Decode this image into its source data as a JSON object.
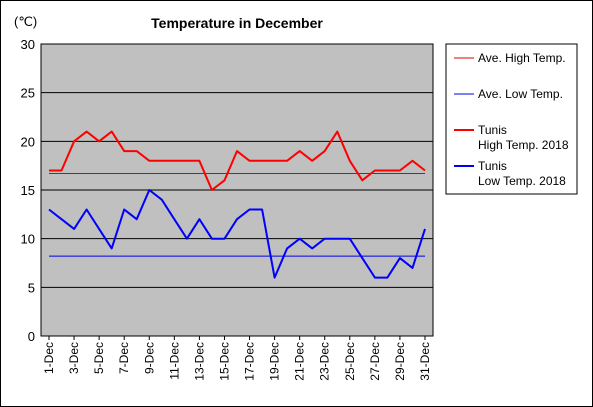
{
  "chart_data": {
    "type": "line",
    "title": "Temperature in December",
    "unit_label": "(℃)",
    "ylim": [
      0,
      30
    ],
    "yticks": [
      0,
      5,
      10,
      15,
      20,
      25,
      30
    ],
    "grid": true,
    "legend_position": "right",
    "categories": [
      "1-Dec",
      "2-Dec",
      "3-Dec",
      "4-Dec",
      "5-Dec",
      "6-Dec",
      "7-Dec",
      "8-Dec",
      "9-Dec",
      "10-Dec",
      "11-Dec",
      "12-Dec",
      "13-Dec",
      "14-Dec",
      "15-Dec",
      "16-Dec",
      "17-Dec",
      "18-Dec",
      "19-Dec",
      "20-Dec",
      "21-Dec",
      "22-Dec",
      "23-Dec",
      "24-Dec",
      "25-Dec",
      "26-Dec",
      "27-Dec",
      "28-Dec",
      "29-Dec",
      "30-Dec",
      "31-Dec"
    ],
    "xtick_labels": [
      "1-Dec",
      "3-Dec",
      "5-Dec",
      "7-Dec",
      "9-Dec",
      "11-Dec",
      "13-Dec",
      "15-Dec",
      "17-Dec",
      "19-Dec",
      "21-Dec",
      "23-Dec",
      "25-Dec",
      "27-Dec",
      "29-Dec",
      "31-Dec"
    ],
    "series": [
      {
        "name": "Ave. High Temp.",
        "constant": 16.7,
        "color": "#e00000",
        "width": 1
      },
      {
        "name": "Ave. Low Temp.",
        "constant": 8.2,
        "color": "#0000ee",
        "width": 1
      },
      {
        "name": "Tunis\nHigh Temp. 2018",
        "color": "#ff0000",
        "width": 2,
        "values": [
          17,
          17,
          20,
          21,
          20,
          21,
          19,
          19,
          18,
          18,
          18,
          18,
          18,
          15,
          16,
          19,
          18,
          18,
          18,
          18,
          19,
          18,
          19,
          21,
          18,
          16,
          17,
          17,
          17,
          18,
          17
        ]
      },
      {
        "name": "Tunis\nLow Temp. 2018",
        "color": "#0000ff",
        "width": 2,
        "values": [
          13,
          12,
          11,
          13,
          11,
          9,
          13,
          12,
          15,
          14,
          12,
          10,
          12,
          10,
          10,
          12,
          13,
          13,
          6,
          9,
          10,
          9,
          10,
          10,
          10,
          8,
          6,
          6,
          8,
          7,
          11
        ]
      }
    ]
  }
}
